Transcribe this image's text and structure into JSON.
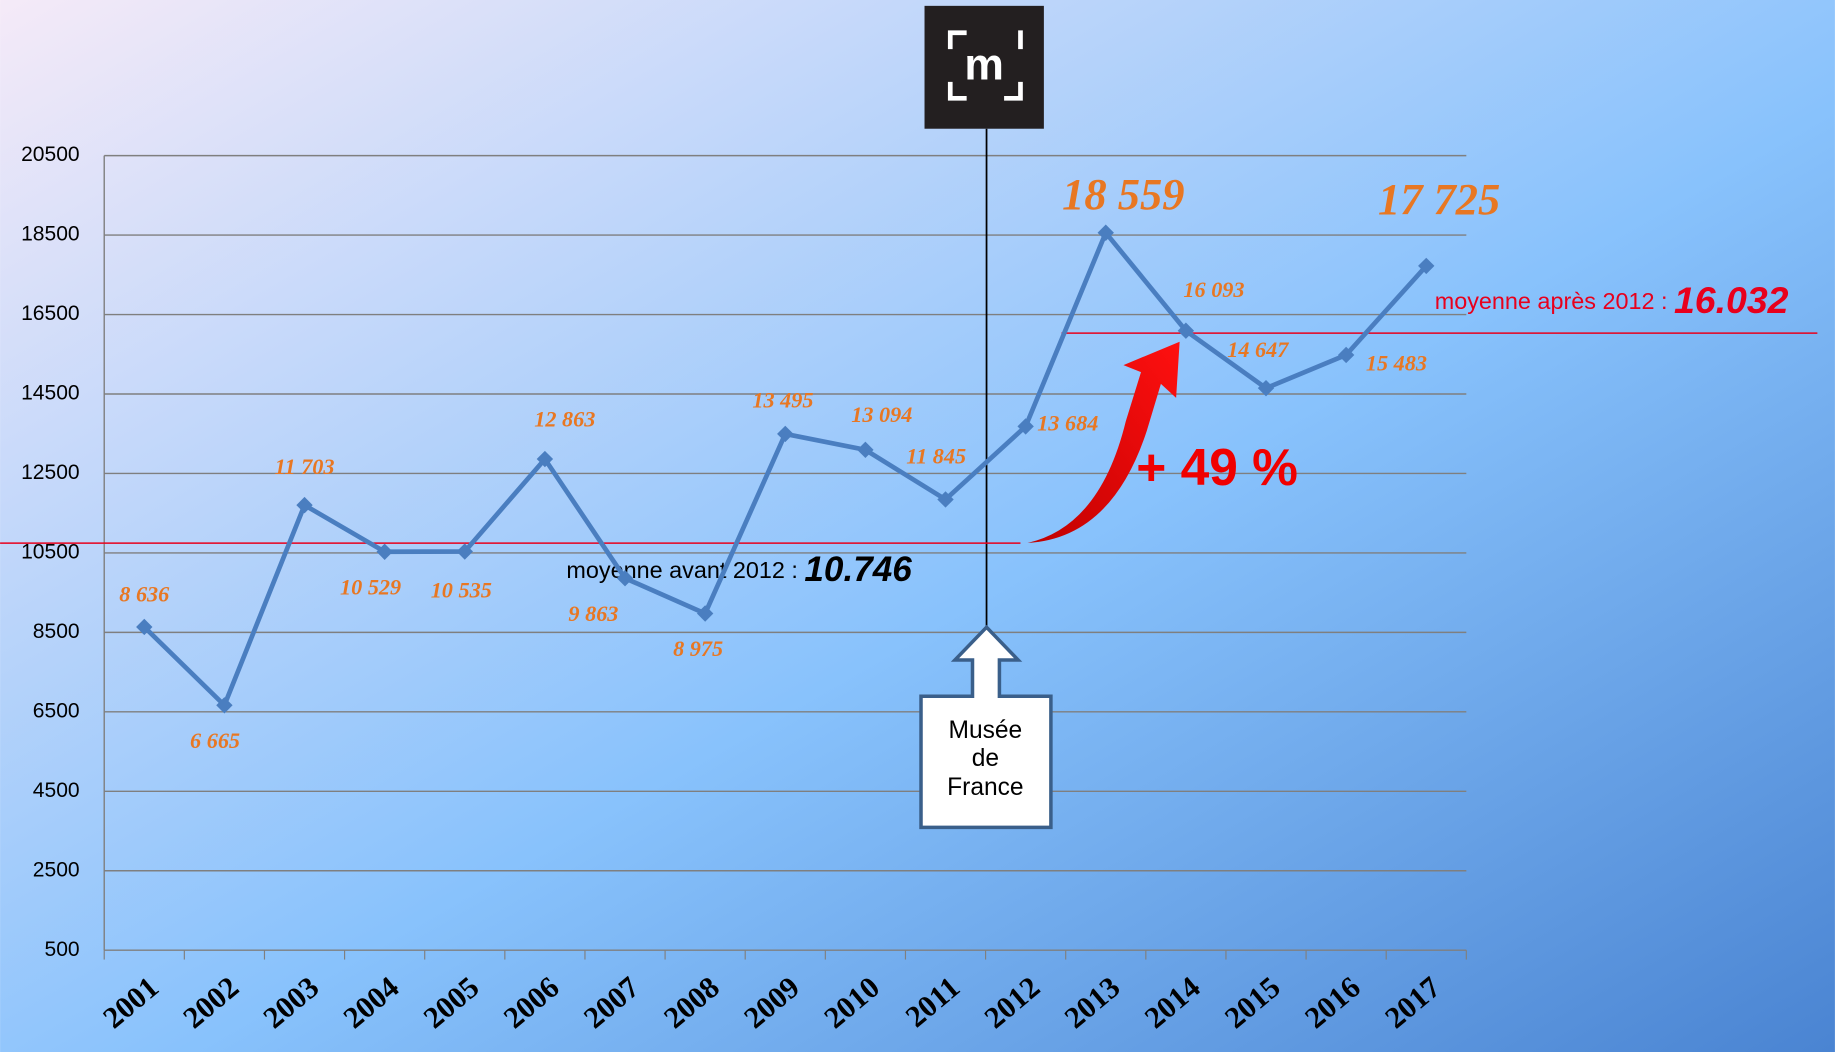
{
  "chart_data": {
    "type": "line",
    "categories": [
      "2001",
      "2002",
      "2003",
      "2004",
      "2005",
      "2006",
      "2007",
      "2008",
      "2009",
      "2010",
      "2011",
      "2012",
      "2013",
      "2014",
      "2015",
      "2016",
      "2017"
    ],
    "series": [
      {
        "name": null,
        "color": "#4a7ec0",
        "values": [
          8636,
          6665,
          11703,
          10529,
          10535,
          12863,
          9863,
          8975,
          13495,
          13094,
          11845,
          13684,
          18559,
          16093,
          14647,
          15483,
          17725
        ],
        "value_labels": [
          "8 636",
          "6 665",
          "11 703",
          "10 529",
          "10 535",
          "12 863",
          "9 863",
          "8 975",
          "13 495",
          "13 094",
          "11 845",
          "13 684",
          "18 559",
          "16 093",
          "14 647",
          "15 483",
          "17 725"
        ]
      }
    ],
    "ylim": [
      500,
      20500
    ],
    "yticks": [
      500,
      2500,
      4500,
      6500,
      8500,
      10500,
      12500,
      14500,
      16500,
      18500,
      20500
    ],
    "grid": true,
    "averages": [
      {
        "label": "moyenne avant 2012 : ",
        "value": 10746,
        "value_label": "10.746",
        "color": "#e8001c"
      },
      {
        "label": "moyenne après 2012 : ",
        "value": 16032,
        "value_label": "16.032",
        "color": "#e8001c"
      }
    ],
    "annotations": {
      "growth": "+ 49 %",
      "marker": [
        "Musée",
        "de",
        "France"
      ],
      "logo": "m"
    }
  }
}
